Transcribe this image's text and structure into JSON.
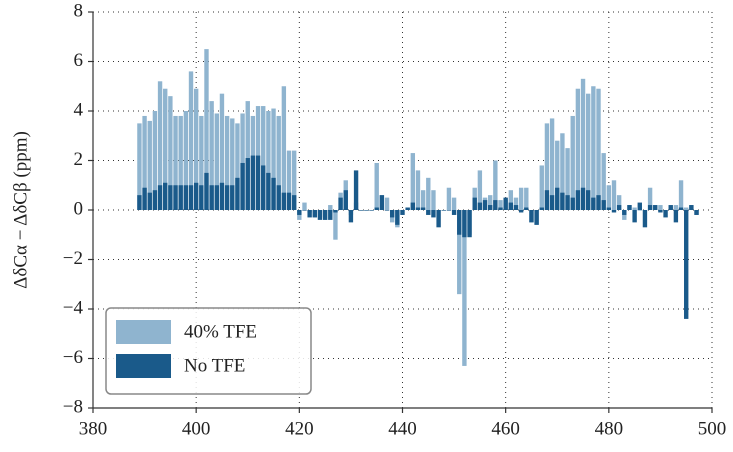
{
  "chart_data": {
    "type": "bar",
    "ylabel": "ΔδCα − ΔδCβ (ppm)",
    "x": [
      389,
      390,
      391,
      392,
      393,
      394,
      395,
      396,
      397,
      398,
      399,
      400,
      401,
      402,
      403,
      404,
      405,
      406,
      407,
      408,
      409,
      410,
      411,
      412,
      413,
      414,
      415,
      416,
      417,
      418,
      419,
      420,
      421,
      422,
      423,
      424,
      425,
      426,
      427,
      428,
      429,
      430,
      431,
      432,
      433,
      434,
      435,
      436,
      437,
      438,
      439,
      440,
      441,
      442,
      443,
      444,
      445,
      446,
      447,
      448,
      449,
      450,
      451,
      452,
      453,
      454,
      455,
      456,
      457,
      458,
      459,
      460,
      461,
      462,
      463,
      464,
      465,
      466,
      467,
      468,
      469,
      470,
      471,
      472,
      473,
      474,
      475,
      476,
      477,
      478,
      479,
      480,
      481,
      482,
      483,
      484,
      485,
      486,
      487,
      488,
      489,
      490,
      491,
      492,
      493,
      494,
      495,
      496,
      497
    ],
    "series": [
      {
        "name": "40% TFE",
        "color": "#8fb4cf",
        "values": [
          3.5,
          3.8,
          3.6,
          4.0,
          5.2,
          4.9,
          4.6,
          3.8,
          3.8,
          4.0,
          5.6,
          4.9,
          3.8,
          6.5,
          4.4,
          3.9,
          4.7,
          3.8,
          3.7,
          3.5,
          3.9,
          4.4,
          3.8,
          4.2,
          4.2,
          4.0,
          4.1,
          3.8,
          5.0,
          2.4,
          2.4,
          -0.4,
          0.3,
          -0.1,
          -0.3,
          -0.3,
          -0.4,
          0.2,
          -1.2,
          0.7,
          1.2,
          -0.2,
          0.3,
          0,
          0,
          0,
          1.9,
          0.6,
          0.5,
          -0.5,
          -0.7,
          0,
          0.1,
          2.3,
          1.6,
          0.8,
          1.3,
          0.8,
          0,
          0,
          0.9,
          0.5,
          -3.4,
          -6.3,
          -1.0,
          0.9,
          1.6,
          0.5,
          0.6,
          2.0,
          0.4,
          0.4,
          0.8,
          0.5,
          0.9,
          0.9,
          -0.5,
          -0.6,
          1.8,
          3.5,
          3.7,
          2.8,
          3.1,
          2.5,
          3.8,
          4.9,
          5.3,
          4.7,
          5.0,
          4.9,
          2.3,
          1.0,
          1.2,
          0.6,
          -0.4,
          0.2,
          0.1,
          0,
          0,
          0.9,
          0.2,
          0.2,
          0,
          0.1,
          0.2,
          1.2,
          0.1,
          0.2,
          -0.2
        ]
      },
      {
        "name": "No TFE",
        "color": "#1a5a8a",
        "values": [
          0.6,
          0.9,
          0.7,
          0.8,
          1.0,
          1.1,
          1.0,
          1.0,
          1.0,
          1.0,
          1.0,
          1.1,
          1.0,
          1.5,
          1.0,
          1.0,
          1.1,
          1.0,
          1.0,
          1.3,
          1.9,
          2.1,
          2.2,
          2.2,
          1.8,
          1.5,
          1.3,
          1.0,
          0.7,
          0.7,
          0.6,
          -0.2,
          0,
          -0.3,
          -0.3,
          -0.4,
          -0.4,
          -0.4,
          -0.1,
          0.5,
          0.8,
          -0.5,
          1.6,
          0,
          0,
          0,
          0.1,
          0.6,
          0,
          -0.3,
          -0.6,
          -0.2,
          0.1,
          0.3,
          0.1,
          0.1,
          -0.2,
          -0.3,
          -0.7,
          0,
          0,
          -0.2,
          -1.0,
          -1.1,
          -1.1,
          0.5,
          0.3,
          0.4,
          0.2,
          0.4,
          0.1,
          0.5,
          0.3,
          0.2,
          -0.1,
          0.1,
          -0.5,
          -0.6,
          0.1,
          0.8,
          0.6,
          0.9,
          0.7,
          0.6,
          0.5,
          0.8,
          0.9,
          0.8,
          0.5,
          0.6,
          0.4,
          0.1,
          -0.1,
          0.2,
          -0.2,
          0.2,
          -0.5,
          0.3,
          -0.7,
          0.2,
          0.2,
          -0.1,
          -0.3,
          0.2,
          -0.5,
          0.1,
          -4.4,
          0.2,
          -0.2
        ]
      }
    ],
    "xlim": [
      380,
      500
    ],
    "xticks": [
      380,
      400,
      420,
      440,
      460,
      480,
      500
    ],
    "ylim": [
      -8,
      8
    ],
    "yticks": [
      {
        "value": -8,
        "label": "−8"
      },
      {
        "value": -6,
        "label": "−6"
      },
      {
        "value": -4,
        "label": "−4"
      },
      {
        "value": -2,
        "label": "−2"
      },
      0,
      2,
      4,
      6,
      8
    ],
    "grid": true,
    "legend": "lower left"
  }
}
